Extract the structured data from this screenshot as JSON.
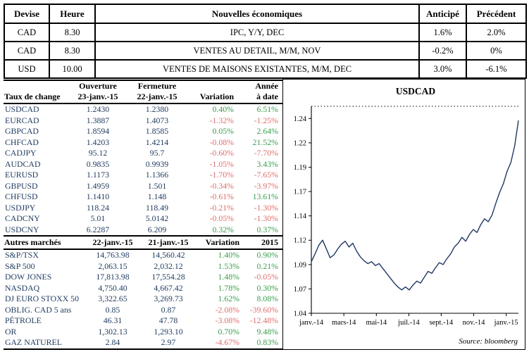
{
  "colors": {
    "positive": "#3aa04d",
    "negative": "#e06e6e",
    "table_text": "#1f3a5f",
    "line": "#1f3864"
  },
  "news_table": {
    "headers": [
      "Devise",
      "Heure",
      "Nouvelles économiques",
      "Anticipé",
      "Précédent"
    ],
    "rows": [
      [
        "CAD",
        "8.30",
        "IPC, Y/Y, DEC",
        "1.6%",
        "2.0%"
      ],
      [
        "CAD",
        "8.30",
        "VENTES AU DETAIL, M/M, NOV",
        "-0.2%",
        "0%"
      ],
      [
        "USD",
        "10.00",
        "VENTES DE MAISONS EXISTANTES, M/M, DEC",
        "3.0%",
        "-6.1%"
      ]
    ]
  },
  "fx_table": {
    "header_line1": {
      "open": "Ouverture",
      "close": "Fermeture",
      "ytd": "Année"
    },
    "header_line2": {
      "name": "Taux de change",
      "open": "23-janv.-15",
      "close": "22-janv.-15",
      "variation": "Variation",
      "ytd": "à date"
    },
    "rows": [
      [
        "USDCAD",
        "1.2430",
        "1.2380",
        "0.40%",
        "6.51%"
      ],
      [
        "EURCAD",
        "1.3887",
        "1.4073",
        "-1.32%",
        "-1.25%"
      ],
      [
        "GBPCAD",
        "1.8594",
        "1.8585",
        "0.05%",
        "2.64%"
      ],
      [
        "CHFCAD",
        "1.4203",
        "1.4214",
        "-0.08%",
        "21.52%"
      ],
      [
        "CADJPY",
        "95.12",
        "95.7",
        "-0.60%",
        "-7.70%"
      ],
      [
        "AUDCAD",
        "0.9835",
        "0.9939",
        "-1.05%",
        "3.43%"
      ],
      [
        "EURUSD",
        "1.1173",
        "1.1366",
        "-1.70%",
        "-7.65%"
      ],
      [
        "GBPUSD",
        "1.4959",
        "1.501",
        "-0.34%",
        "-3.97%"
      ],
      [
        "CHFUSD",
        "1.1410",
        "1.148",
        "-0.61%",
        "13.61%"
      ],
      [
        "USDJPY",
        "118.24",
        "118.49",
        "-0.21%",
        "-1.30%"
      ],
      [
        "CADCNY",
        "5.01",
        "5.0142",
        "-0.05%",
        "-1.30%"
      ],
      [
        "USDCNY",
        "6.2287",
        "6.209",
        "0.32%",
        "0.37%"
      ]
    ]
  },
  "markets_table": {
    "headers": [
      "Autres marchés",
      "22-janv.-15",
      "21-janv.-15",
      "Variation",
      "2015"
    ],
    "rows": [
      [
        "S&P/TSX",
        "14,763.98",
        "14,560.42",
        "1.40%",
        "0.90%"
      ],
      [
        "S&P 500",
        "2,063.15",
        "2,032.12",
        "1.53%",
        "0.21%"
      ],
      [
        "DOW JONES",
        "17,813.98",
        "17,554.28",
        "1.48%",
        "-0.05%"
      ],
      [
        "NASDAQ",
        "4,750.40",
        "4,667.42",
        "1.78%",
        "0.30%"
      ],
      [
        "DJ EURO STOXX 50",
        "3,322.65",
        "3,269.73",
        "1.62%",
        "8.08%"
      ],
      [
        "OBLIG. CAD 5 ans",
        "0.85",
        "0.87",
        "-2.08%",
        "-39.60%"
      ],
      [
        "PÉTROLE",
        "46.31",
        "47.78",
        "-3.08%",
        "-12.48%"
      ],
      [
        "OR",
        "1,302.13",
        "1,293.10",
        "0.70%",
        "9.48%"
      ],
      [
        "GAZ NATUREL",
        "2.84",
        "2.97",
        "-4.67%",
        "0.83%"
      ]
    ]
  },
  "chart_data": {
    "type": "line",
    "title": "USDCAD",
    "source": "Source: bloomberg",
    "xlabel": "",
    "ylabel": "",
    "ylim": [
      1.04,
      1.2525
    ],
    "ytick_values": [
      1.04,
      1.065,
      1.09,
      1.115,
      1.14,
      1.165,
      1.19,
      1.215,
      1.24
    ],
    "ytick_labels": [
      "1.04",
      "1.07",
      "1.09",
      "1.12",
      "1.14",
      "1.17",
      "1.19",
      "1.22",
      "1.24"
    ],
    "xticks": [
      {
        "label": "janv.-14",
        "pos": 0.0
      },
      {
        "label": "mars-14",
        "pos": 0.157
      },
      {
        "label": "mai-14",
        "pos": 0.314
      },
      {
        "label": "juil.-14",
        "pos": 0.471
      },
      {
        "label": "sept.-14",
        "pos": 0.627
      },
      {
        "label": "nov.-14",
        "pos": 0.784
      },
      {
        "label": "janv.-15",
        "pos": 0.941
      }
    ],
    "values": [
      1.093,
      1.101,
      1.11,
      1.115,
      1.106,
      1.097,
      1.1,
      1.106,
      1.111,
      1.114,
      1.108,
      1.112,
      1.104,
      1.098,
      1.094,
      1.091,
      1.093,
      1.089,
      1.091,
      1.086,
      1.081,
      1.076,
      1.071,
      1.067,
      1.064,
      1.067,
      1.064,
      1.069,
      1.073,
      1.071,
      1.077,
      1.083,
      1.081,
      1.087,
      1.092,
      1.09,
      1.096,
      1.101,
      1.108,
      1.112,
      1.118,
      1.114,
      1.121,
      1.126,
      1.123,
      1.131,
      1.137,
      1.134,
      1.141,
      1.153,
      1.164,
      1.173,
      1.186,
      1.195,
      1.212,
      1.238
    ]
  }
}
